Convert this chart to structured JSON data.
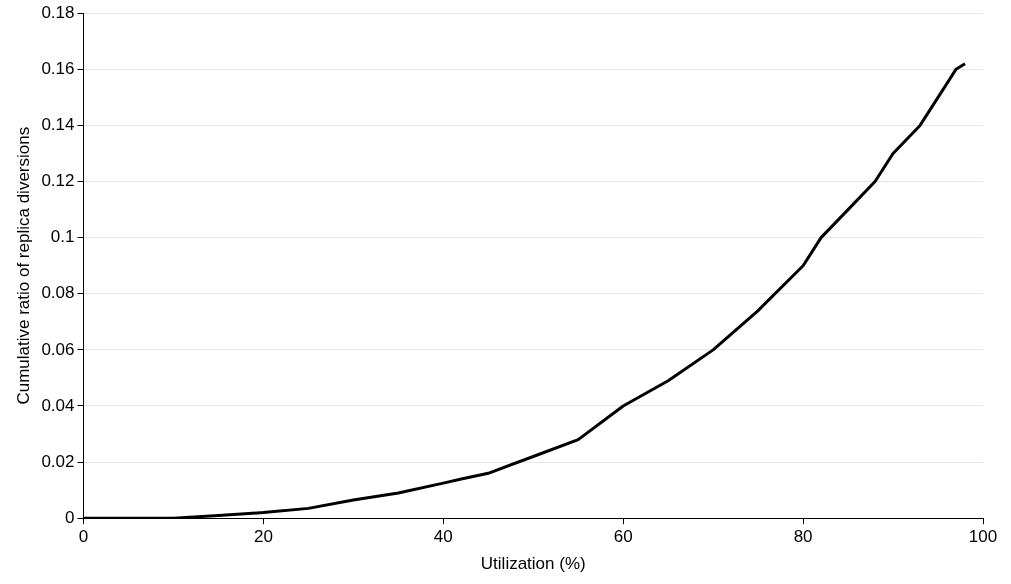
{
  "chart_data": {
    "type": "line",
    "xlabel": "Utilization (%)",
    "ylabel": "Cumulative ratio of replica diversions",
    "series": [
      {
        "color": "#000000",
        "x": [
          0,
          5,
          10,
          15,
          20,
          25,
          30,
          35,
          40,
          42,
          45,
          50,
          55,
          60,
          65,
          70,
          75,
          80,
          82,
          85,
          88,
          90,
          93,
          96,
          97,
          98
        ],
        "values": [
          0,
          0,
          0,
          0.001,
          0.002,
          0.0035,
          0.0065,
          0.009,
          0.0125,
          0.014,
          0.016,
          0.022,
          0.028,
          0.04,
          0.049,
          0.06,
          0.074,
          0.09,
          0.1,
          0.11,
          0.12,
          0.13,
          0.14,
          0.155,
          0.16,
          0.162
        ]
      }
    ],
    "xlim": [
      0,
      100
    ],
    "xticks": [
      0,
      20,
      40,
      60,
      80,
      100
    ],
    "ylim": [
      0,
      0.18
    ],
    "yticks": [
      0,
      0.02,
      0.04,
      0.06,
      0.08,
      0.1,
      0.12,
      0.14,
      0.16,
      0.18
    ],
    "grid": "y",
    "legend": false,
    "marker": "none",
    "line_style": "solid"
  }
}
